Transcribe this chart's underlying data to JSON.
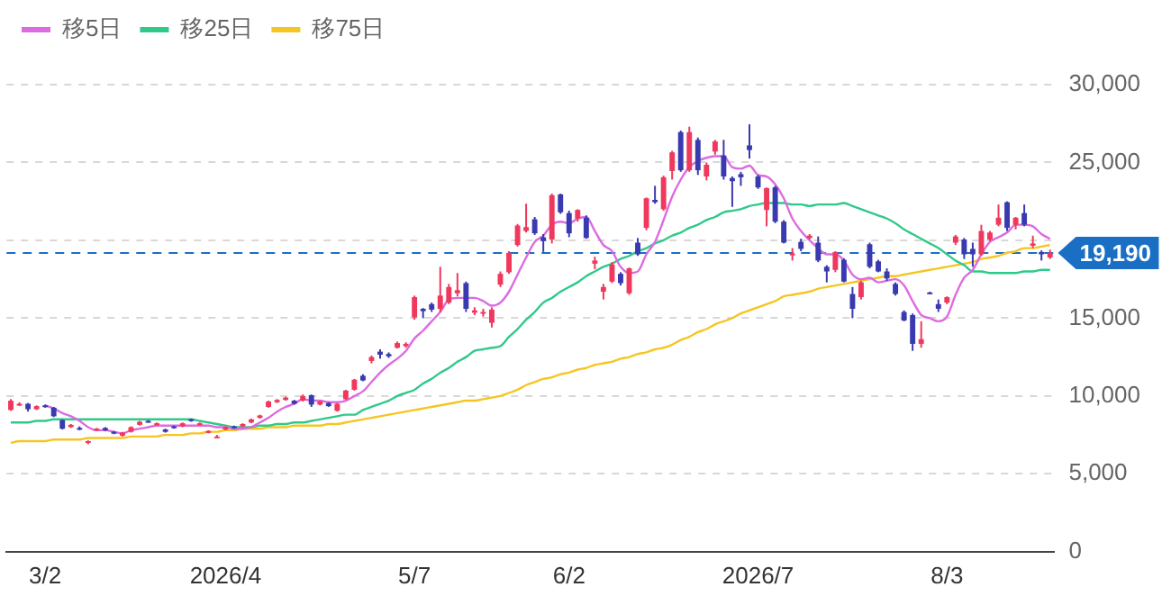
{
  "chart_data": {
    "type": "candlestick",
    "categories": [
      null,
      null,
      null,
      null,
      "3/2",
      null,
      null,
      null,
      null,
      null,
      null,
      null,
      null,
      null,
      null,
      null,
      null,
      null,
      null,
      null,
      null,
      null,
      null,
      null,
      null,
      "2026/4",
      null,
      null,
      null,
      null,
      null,
      null,
      null,
      null,
      null,
      null,
      null,
      null,
      null,
      null,
      null,
      null,
      null,
      null,
      null,
      null,
      null,
      "5/7",
      null,
      null,
      null,
      null,
      null,
      null,
      null,
      null,
      null,
      null,
      null,
      null,
      null,
      null,
      null,
      null,
      null,
      "6/2",
      null,
      null,
      null,
      null,
      null,
      null,
      null,
      null,
      null,
      null,
      null,
      null,
      null,
      null,
      null,
      null,
      null,
      null,
      null,
      null,
      null,
      "2026/7",
      null,
      null,
      null,
      null,
      null,
      null,
      null,
      null,
      null,
      null,
      null,
      null,
      null,
      null,
      null,
      null,
      null,
      null,
      null,
      null,
      null,
      "8/3",
      null,
      null,
      null,
      null,
      null,
      null,
      null,
      null,
      null,
      null,
      null,
      null
    ],
    "ohlc": [
      [
        9100,
        9800,
        9050,
        9700
      ],
      [
        9450,
        9600,
        9350,
        9500
      ],
      [
        9500,
        9550,
        9000,
        9150
      ],
      [
        9150,
        9400,
        9100,
        9350
      ],
      [
        9400,
        9450,
        9250,
        9300
      ],
      [
        9250,
        9300,
        8650,
        8700
      ],
      [
        8450,
        8500,
        7850,
        7900
      ],
      [
        8000,
        8200,
        7950,
        8150
      ],
      [
        7950,
        8050,
        7800,
        7900
      ],
      [
        7050,
        7150,
        6900,
        7100
      ],
      [
        7850,
        7950,
        7750,
        7900
      ],
      [
        7950,
        8000,
        7750,
        7800
      ],
      [
        7700,
        7750,
        7550,
        7600
      ],
      [
        7450,
        7700,
        7400,
        7650
      ],
      [
        7700,
        8050,
        7650,
        8000
      ],
      [
        8150,
        8400,
        8100,
        8350
      ],
      [
        8400,
        8450,
        8300,
        8350
      ],
      [
        8200,
        8300,
        8100,
        8250
      ],
      [
        7850,
        7900,
        7650,
        7700
      ],
      [
        8050,
        8100,
        7900,
        7950
      ],
      [
        8050,
        8300,
        8000,
        8250
      ],
      [
        8500,
        8550,
        8350,
        8400
      ],
      [
        8150,
        8300,
        8100,
        8250
      ],
      [
        7700,
        7800,
        7600,
        7750
      ],
      [
        7350,
        7500,
        7300,
        7400
      ],
      [
        7850,
        8050,
        7800,
        8000
      ],
      [
        8050,
        8100,
        7900,
        7950
      ],
      [
        8050,
        8250,
        8000,
        8200
      ],
      [
        8300,
        8550,
        8250,
        8500
      ],
      [
        8600,
        8800,
        8550,
        8750
      ],
      [
        9300,
        9700,
        9250,
        9650
      ],
      [
        9600,
        9800,
        9550,
        9750
      ],
      [
        9750,
        9950,
        9700,
        9900
      ],
      [
        9700,
        9750,
        9450,
        9500
      ],
      [
        9700,
        10100,
        9650,
        10000
      ],
      [
        10050,
        10100,
        9300,
        9450
      ],
      [
        9450,
        9700,
        9400,
        9650
      ],
      [
        9550,
        9600,
        9300,
        9350
      ],
      [
        9050,
        9550,
        9000,
        9500
      ],
      [
        9800,
        10400,
        9750,
        10350
      ],
      [
        10400,
        11100,
        10350,
        11050
      ],
      [
        11300,
        11400,
        10950,
        11000
      ],
      [
        12250,
        12600,
        12100,
        12500
      ],
      [
        12850,
        13000,
        12400,
        12650
      ],
      [
        12700,
        12800,
        12450,
        12550
      ],
      [
        13100,
        13500,
        13050,
        13400
      ],
      [
        13200,
        13450,
        13100,
        13350
      ],
      [
        15050,
        16450,
        14900,
        16350
      ],
      [
        15600,
        15650,
        15000,
        15450
      ],
      [
        15900,
        16000,
        15400,
        15550
      ],
      [
        15600,
        18300,
        15400,
        16450
      ],
      [
        16000,
        17200,
        15900,
        17000
      ],
      [
        16600,
        17900,
        16400,
        16800
      ],
      [
        17250,
        17350,
        15400,
        15600
      ],
      [
        15350,
        15700,
        15200,
        15500
      ],
      [
        15300,
        15600,
        15100,
        15400
      ],
      [
        14700,
        15700,
        14400,
        15550
      ],
      [
        17150,
        18000,
        17000,
        17850
      ],
      [
        17950,
        19300,
        17850,
        19200
      ],
      [
        19700,
        21050,
        19600,
        20950
      ],
      [
        20600,
        22350,
        20500,
        20850
      ],
      [
        21350,
        21500,
        20350,
        20450
      ],
      [
        20200,
        20400,
        19250,
        19950
      ],
      [
        20050,
        23000,
        19800,
        22900
      ],
      [
        22950,
        23000,
        21700,
        21800
      ],
      [
        21750,
        21900,
        20200,
        20450
      ],
      [
        21400,
        22000,
        21200,
        21950
      ],
      [
        21450,
        21600,
        20100,
        20150
      ],
      [
        18500,
        18950,
        18150,
        18700
      ],
      [
        16700,
        17200,
        16200,
        17000
      ],
      [
        17350,
        18600,
        17250,
        18450
      ],
      [
        17850,
        17950,
        17100,
        17250
      ],
      [
        16600,
        18250,
        16500,
        18200
      ],
      [
        19850,
        20150,
        19000,
        19100
      ],
      [
        20800,
        22750,
        20650,
        22700
      ],
      [
        22600,
        23500,
        22350,
        22450
      ],
      [
        22000,
        24150,
        21900,
        24050
      ],
      [
        24450,
        25750,
        23900,
        25650
      ],
      [
        26950,
        27050,
        24400,
        24500
      ],
      [
        24500,
        27300,
        24400,
        26950
      ],
      [
        26450,
        26600,
        24200,
        24500
      ],
      [
        24100,
        25000,
        23850,
        24850
      ],
      [
        25700,
        26450,
        25500,
        26350
      ],
      [
        25450,
        26450,
        23900,
        24100
      ],
      [
        24000,
        24100,
        22150,
        23800
      ],
      [
        24250,
        24400,
        23500,
        24050
      ],
      [
        26100,
        27450,
        25250,
        25800
      ],
      [
        24100,
        24200,
        23300,
        23400
      ],
      [
        21950,
        23400,
        20900,
        23350
      ],
      [
        23400,
        23500,
        21100,
        21200
      ],
      [
        21200,
        21300,
        19800,
        19850
      ],
      [
        19050,
        19500,
        18700,
        19150
      ],
      [
        19900,
        20100,
        19300,
        19450
      ],
      [
        20150,
        20400,
        20050,
        20300
      ],
      [
        19850,
        20250,
        18600,
        18700
      ],
      [
        18300,
        18400,
        17300,
        18000
      ],
      [
        18100,
        19300,
        17950,
        19250
      ],
      [
        18750,
        18850,
        17300,
        17350
      ],
      [
        16550,
        17000,
        15000,
        15600
      ],
      [
        16350,
        17400,
        16200,
        17300
      ],
      [
        19750,
        19850,
        18200,
        18300
      ],
      [
        18650,
        18750,
        17950,
        18000
      ],
      [
        18000,
        18200,
        17400,
        17550
      ],
      [
        17200,
        17300,
        16450,
        16550
      ],
      [
        15400,
        15500,
        14800,
        14850
      ],
      [
        15200,
        15300,
        12900,
        13350
      ],
      [
        13350,
        14800,
        13100,
        13650
      ],
      [
        16650,
        16700,
        16600,
        16620
      ],
      [
        15900,
        16200,
        15400,
        15600
      ],
      [
        16000,
        16400,
        15900,
        16350
      ],
      [
        19850,
        20350,
        19700,
        20250
      ],
      [
        20050,
        20150,
        18800,
        19100
      ],
      [
        19450,
        19850,
        18300,
        19100
      ],
      [
        19100,
        21000,
        19000,
        20600
      ],
      [
        20050,
        20600,
        19950,
        20500
      ],
      [
        21000,
        22300,
        20900,
        21450
      ],
      [
        22450,
        22500,
        20600,
        20800
      ],
      [
        21000,
        21500,
        20700,
        21450
      ],
      [
        21750,
        22300,
        20900,
        21000
      ],
      [
        19650,
        20300,
        19500,
        19800
      ],
      [
        19250,
        19350,
        18700,
        19100
      ],
      [
        18900,
        19400,
        18800,
        19190
      ]
    ],
    "colors": [
      "#f0385c",
      "#f0385c",
      "#3a3ab0",
      "#f0385c",
      "#3a3ab0",
      "#3a3ab0",
      "#3a3ab0",
      "#f0385c",
      "#3a3ab0",
      "#f0385c",
      "#f0385c",
      "#3a3ab0",
      "#3a3ab0",
      "#f0385c",
      "#f0385c",
      "#f0385c",
      "#3a3ab0",
      "#f0385c",
      "#3a3ab0",
      "#3a3ab0",
      "#f0385c",
      "#3a3ab0",
      "#f0385c",
      "#f0385c",
      "#f0385c",
      "#f0385c",
      "#3a3ab0",
      "#f0385c",
      "#f0385c",
      "#f0385c",
      "#f0385c",
      "#f0385c",
      "#f0385c",
      "#3a3ab0",
      "#f0385c",
      "#3a3ab0",
      "#f0385c",
      "#3a3ab0",
      "#f0385c",
      "#f0385c",
      "#f0385c",
      "#3a3ab0",
      "#f0385c",
      "#3a3ab0",
      "#3a3ab0",
      "#f0385c",
      "#f0385c",
      "#f0385c",
      "#3a3ab0",
      "#3a3ab0",
      "#f0385c",
      "#f0385c",
      "#f0385c",
      "#3a3ab0",
      "#f0385c",
      "#f0385c",
      "#f0385c",
      "#f0385c",
      "#f0385c",
      "#f0385c",
      "#f0385c",
      "#3a3ab0",
      "#3a3ab0",
      "#f0385c",
      "#3a3ab0",
      "#3a3ab0",
      "#f0385c",
      "#3a3ab0",
      "#f0385c",
      "#f0385c",
      "#f0385c",
      "#3a3ab0",
      "#f0385c",
      "#3a3ab0",
      "#f0385c",
      "#3a3ab0",
      "#f0385c",
      "#f0385c",
      "#3a3ab0",
      "#f0385c",
      "#3a3ab0",
      "#f0385c",
      "#f0385c",
      "#3a3ab0",
      "#3a3ab0",
      "#3a3ab0",
      "#3a3ab0",
      "#3a3ab0",
      "#f0385c",
      "#3a3ab0",
      "#3a3ab0",
      "#f0385c",
      "#3a3ab0",
      "#f0385c",
      "#3a3ab0",
      "#3a3ab0",
      "#f0385c",
      "#3a3ab0",
      "#3a3ab0",
      "#f0385c",
      "#3a3ab0",
      "#3a3ab0",
      "#3a3ab0",
      "#3a3ab0",
      "#3a3ab0",
      "#3a3ab0",
      "#f0385c",
      "#3a3ab0",
      "#3a3ab0",
      "#f0385c",
      "#f0385c",
      "#3a3ab0",
      "#3a3ab0",
      "#f0385c",
      "#f0385c",
      "#f0385c",
      "#3a3ab0",
      "#f0385c",
      "#3a3ab0",
      "#f0385c",
      "#3a3ab0",
      "#f0385c"
    ],
    "series": [
      {
        "type": "line",
        "name": "移5日",
        "color": "#dd6be0",
        "values": [
          null,
          null,
          null,
          null,
          9400,
          9200,
          8900,
          8700,
          8400,
          8000,
          7800,
          7800,
          7700,
          7600,
          7800,
          7900,
          8000,
          8100,
          8100,
          8100,
          8100,
          8100,
          8100,
          8100,
          8000,
          8000,
          7900,
          7900,
          8000,
          8300,
          8600,
          9000,
          9300,
          9500,
          9800,
          9700,
          9700,
          9600,
          9600,
          9700,
          10000,
          10300,
          10900,
          11500,
          12000,
          12400,
          12900,
          13700,
          14200,
          14800,
          15400,
          16200,
          16300,
          16300,
          16300,
          16100,
          15800,
          16000,
          16700,
          17800,
          18900,
          19900,
          20300,
          21000,
          21200,
          21100,
          21400,
          21500,
          20600,
          19700,
          19300,
          18300,
          17900,
          18000,
          19100,
          19900,
          21300,
          22800,
          23900,
          24700,
          25100,
          25300,
          25400,
          25400,
          24700,
          24600,
          24800,
          24200,
          24100,
          23600,
          22700,
          21400,
          20600,
          20000,
          19500,
          19100,
          19100,
          18700,
          17800,
          17500,
          17600,
          17300,
          17400,
          17500,
          17100,
          16100,
          15200,
          15000,
          14800,
          15100,
          16500,
          17600,
          18100,
          19100,
          19900,
          20200,
          20500,
          21000,
          21000,
          20900,
          20400,
          20100
        ]
      },
      {
        "type": "line",
        "name": "移25日",
        "color": "#2fc98a",
        "values": [
          8300,
          8300,
          8300,
          8400,
          8400,
          8500,
          8500,
          8500,
          8500,
          8500,
          8500,
          8500,
          8500,
          8500,
          8500,
          8500,
          8500,
          8500,
          8500,
          8500,
          8500,
          8500,
          8400,
          8300,
          8200,
          8100,
          8000,
          8000,
          8000,
          8100,
          8100,
          8200,
          8200,
          8300,
          8300,
          8400,
          8500,
          8600,
          8700,
          8800,
          8800,
          9100,
          9300,
          9500,
          9700,
          10000,
          10200,
          10400,
          10800,
          11100,
          11500,
          11800,
          12200,
          12500,
          12900,
          13000,
          13100,
          13200,
          13800,
          14300,
          14900,
          15400,
          16000,
          16300,
          16700,
          17000,
          17300,
          17700,
          18000,
          18300,
          18500,
          18800,
          19000,
          19300,
          19500,
          19800,
          20000,
          20300,
          20500,
          20800,
          21000,
          21300,
          21500,
          21800,
          21900,
          22000,
          22200,
          22300,
          22400,
          22400,
          22400,
          22300,
          22300,
          22200,
          22300,
          22300,
          22300,
          22400,
          22200,
          22000,
          21800,
          21600,
          21400,
          21100,
          20700,
          20400,
          20100,
          19800,
          19500,
          19100,
          18700,
          18400,
          18000,
          18000,
          17900,
          17900,
          17900,
          17900,
          18000,
          18000,
          18100,
          18100
        ]
      },
      {
        "type": "line",
        "name": "移75日",
        "color": "#f5c623",
        "values": [
          7000,
          7100,
          7100,
          7100,
          7100,
          7200,
          7200,
          7200,
          7200,
          7300,
          7300,
          7300,
          7300,
          7300,
          7400,
          7400,
          7400,
          7400,
          7500,
          7500,
          7500,
          7600,
          7600,
          7700,
          7700,
          7800,
          7800,
          7900,
          7900,
          7900,
          8000,
          8000,
          8000,
          8100,
          8100,
          8100,
          8100,
          8200,
          8200,
          8300,
          8400,
          8500,
          8600,
          8700,
          8800,
          8900,
          9000,
          9100,
          9200,
          9300,
          9400,
          9500,
          9600,
          9700,
          9700,
          9800,
          9900,
          10000,
          10200,
          10400,
          10700,
          10900,
          11100,
          11200,
          11400,
          11500,
          11700,
          11800,
          12000,
          12100,
          12200,
          12400,
          12500,
          12700,
          12800,
          13000,
          13100,
          13300,
          13600,
          13800,
          14100,
          14300,
          14600,
          14800,
          15000,
          15300,
          15500,
          15700,
          15900,
          16100,
          16400,
          16500,
          16600,
          16700,
          16900,
          17000,
          17100,
          17200,
          17300,
          17400,
          17500,
          17600,
          17700,
          17700,
          17800,
          17900,
          18000,
          18100,
          18200,
          18300,
          18400,
          18500,
          18600,
          18800,
          18900,
          19000,
          19200,
          19300,
          19500,
          19500,
          19600,
          19700
        ]
      }
    ],
    "ylim": [
      0,
      30000
    ],
    "yticks": [
      0,
      {
        "value": 5000,
        "label": "5,000"
      },
      {
        "value": 10000,
        "label": "10,000"
      },
      {
        "value": 15000,
        "label": "15,000"
      },
      {
        "value": 20000,
        "label": null
      },
      {
        "value": 25000,
        "label": "25,000"
      },
      {
        "value": 30000,
        "label": "30,000"
      }
    ],
    "ref_lines": [
      {
        "axis": "y",
        "value": 19190,
        "label": "19,190",
        "color": "#1a6fc4",
        "line_style": "dashed"
      }
    ],
    "grid": "y",
    "legend": "top left",
    "marker": "none"
  }
}
